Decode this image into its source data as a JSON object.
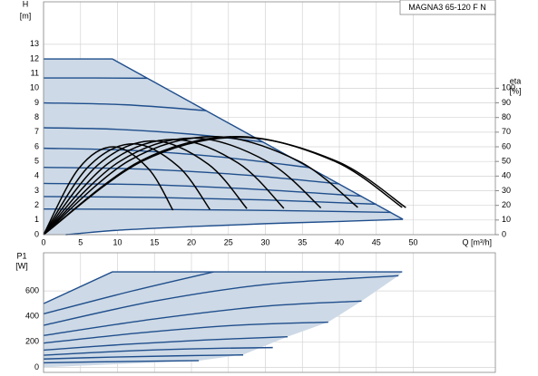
{
  "chart_data": [
    {
      "type": "line",
      "title": "MAGNA3 65-120 F N",
      "ylabel": [
        "H",
        "[m]"
      ],
      "y2label": [
        "eta",
        "[%]"
      ],
      "xlabel": "Q [m³/h]",
      "xlim": [
        0,
        61.1
      ],
      "ylim": [
        0,
        15.9
      ],
      "y2lim": [
        0,
        159
      ],
      "xticks": [
        0,
        5,
        10,
        15,
        20,
        25,
        30,
        35,
        40,
        45,
        50
      ],
      "yticks": [
        0,
        1,
        2,
        3,
        4,
        5,
        6,
        7,
        8,
        9,
        10,
        11,
        12,
        13
      ],
      "y2ticks": [
        0,
        10,
        20,
        30,
        40,
        50,
        60,
        70,
        80,
        90,
        100
      ],
      "grid": true,
      "series": [
        {
          "fill": "#cdd9e6",
          "smooth": false,
          "x": [
            0,
            9.3,
            48.6,
            40,
            30,
            20,
            10,
            3,
            0
          ],
          "values": [
            12,
            12,
            1.05,
            0.9,
            0.75,
            0.55,
            0.3,
            0,
            0
          ]
        },
        {
          "color": "#1f4e8c",
          "smooth": false,
          "x": [
            0,
            9.3,
            48.6
          ],
          "values": [
            12,
            12,
            1.05
          ]
        },
        {
          "color": "#1f4e8c",
          "x": [
            0,
            7,
            14
          ],
          "values": [
            10.7,
            10.7,
            10.68
          ]
        },
        {
          "color": "#1f4e8c",
          "x": [
            0,
            11,
            22
          ],
          "values": [
            9,
            8.87,
            8.47
          ]
        },
        {
          "color": "#1f4e8c",
          "x": [
            0,
            10,
            20,
            29.7
          ],
          "values": [
            7.3,
            7.19,
            6.86,
            6.33
          ]
        },
        {
          "color": "#1f4e8c",
          "x": [
            0,
            12,
            24,
            36
          ],
          "values": [
            5.9,
            5.75,
            5.3,
            4.58
          ]
        },
        {
          "color": "#1f4e8c",
          "x": [
            0,
            13,
            27,
            40
          ],
          "values": [
            4.6,
            4.48,
            4.08,
            3.47
          ]
        },
        {
          "color": "#1f4e8c",
          "x": [
            0,
            15,
            29,
            43
          ],
          "values": [
            3.5,
            3.4,
            3.09,
            2.63
          ]
        },
        {
          "color": "#1f4e8c",
          "x": [
            0,
            15,
            30,
            45
          ],
          "values": [
            2.6,
            2.54,
            2.37,
            2.08
          ]
        },
        {
          "color": "#1f4e8c",
          "x": [
            0,
            16,
            31,
            47
          ],
          "values": [
            1.75,
            1.72,
            1.65,
            1.52
          ]
        },
        {
          "color": "#1f4e8c",
          "x": [
            3,
            10,
            20,
            30,
            40,
            48.6
          ],
          "values": [
            0,
            0.3,
            0.55,
            0.75,
            0.9,
            1.05
          ]
        },
        {
          "color": "#000000",
          "axis": "y2",
          "x": [
            0,
            4.73,
            9.46,
            14.19,
            17.5
          ],
          "values": [
            0,
            45,
            60,
            45,
            16.7
          ]
        },
        {
          "color": "#000000",
          "axis": "y2",
          "x": [
            0,
            6.08,
            12.16,
            18.24,
            22.5
          ],
          "values": [
            0,
            46.5,
            62,
            46.5,
            17.2
          ]
        },
        {
          "color": "#000000",
          "axis": "y2",
          "x": [
            0,
            7.43,
            14.86,
            22.3,
            27.5
          ],
          "values": [
            0,
            48,
            64,
            48,
            17.8
          ]
        },
        {
          "color": "#000000",
          "axis": "y2",
          "x": [
            0,
            8.78,
            17.57,
            26.35,
            32.5
          ],
          "values": [
            0,
            48.8,
            65,
            48.8,
            18
          ]
        },
        {
          "color": "#000000",
          "axis": "y2",
          "x": [
            0,
            10.14,
            20.27,
            30.41,
            37.5
          ],
          "values": [
            0,
            49.5,
            66,
            49.5,
            18.3
          ]
        },
        {
          "color": "#000000",
          "axis": "y2",
          "x": [
            0,
            11.49,
            22.97,
            34.46,
            42.5
          ],
          "values": [
            0,
            50.3,
            67,
            50.3,
            18.6
          ]
        },
        {
          "color": "#000000",
          "axis": "y2",
          "x": [
            0,
            13.1,
            26.2,
            39.3,
            48.5
          ],
          "values": [
            0,
            50.3,
            67,
            50.3,
            18.6
          ]
        },
        {
          "color": "#000000",
          "axis": "y2",
          "x": [
            0,
            13.25,
            26.5,
            39.75,
            49
          ],
          "values": [
            0,
            49.9,
            66.5,
            49.9,
            18.5
          ]
        }
      ]
    },
    {
      "type": "line",
      "ylabel": [
        "P1",
        "[W]"
      ],
      "xlim": [
        0,
        61.1
      ],
      "ylim": [
        -40,
        900
      ],
      "xticks": [
        0,
        5,
        10,
        15,
        20,
        25,
        30,
        35,
        40,
        45,
        50
      ],
      "show_xtick_labels": false,
      "yticks": [
        0,
        200,
        400,
        600
      ],
      "grid": true,
      "series": [
        {
          "fill": "#cdd9e6",
          "smooth": false,
          "x": [
            0,
            9.3,
            48.5,
            48,
            43,
            38.5,
            33,
            27,
            21,
            0
          ],
          "values": [
            500,
            750,
            750,
            720,
            520,
            355,
            240,
            100,
            52,
            0
          ]
        },
        {
          "color": "#1f4e8c",
          "smooth": false,
          "x": [
            0,
            9.3,
            48.5
          ],
          "values": [
            500,
            750,
            750
          ]
        },
        {
          "color": "#1f4e8c",
          "x": [
            0,
            12,
            23
          ],
          "values": [
            420,
            600,
            750
          ]
        },
        {
          "color": "#1f4e8c",
          "x": [
            0,
            15,
            30,
            48
          ],
          "values": [
            330,
            520,
            650,
            720
          ]
        },
        {
          "color": "#1f4e8c",
          "x": [
            0,
            15,
            30,
            43
          ],
          "values": [
            250,
            380,
            480,
            520
          ]
        },
        {
          "color": "#1f4e8c",
          "x": [
            0,
            13,
            26,
            38.5
          ],
          "values": [
            190,
            270,
            330,
            355
          ]
        },
        {
          "color": "#1f4e8c",
          "x": [
            0,
            11,
            22,
            33
          ],
          "values": [
            135,
            180,
            215,
            240
          ]
        },
        {
          "color": "#1f4e8c",
          "x": [
            0,
            10,
            20,
            31
          ],
          "values": [
            95,
            125,
            145,
            155
          ]
        },
        {
          "color": "#1f4e8c",
          "x": [
            0,
            9,
            18,
            27
          ],
          "values": [
            65,
            80,
            90,
            97
          ]
        },
        {
          "color": "#1f4e8c",
          "x": [
            0,
            7,
            14,
            21
          ],
          "values": [
            35,
            42,
            48,
            52
          ]
        }
      ]
    }
  ]
}
